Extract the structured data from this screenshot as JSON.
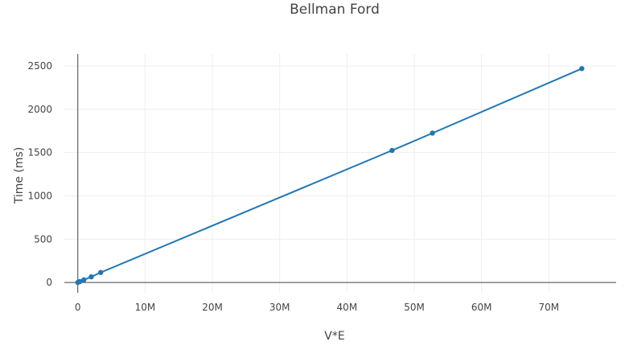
{
  "chart_data": {
    "type": "line",
    "title": "Bellman Ford",
    "xlabel": "V*E",
    "ylabel": "Time (ms)",
    "xlim": [
      -2000000,
      80000000
    ],
    "ylim": [
      -120,
      2640
    ],
    "grid": true,
    "legend": "none",
    "x_ticks": [
      {
        "value": 0,
        "label": "0"
      },
      {
        "value": 10000000,
        "label": "10M"
      },
      {
        "value": 20000000,
        "label": "20M"
      },
      {
        "value": 30000000,
        "label": "30M"
      },
      {
        "value": 40000000,
        "label": "40M"
      },
      {
        "value": 50000000,
        "label": "50M"
      },
      {
        "value": 60000000,
        "label": "60M"
      },
      {
        "value": 70000000,
        "label": "70M"
      }
    ],
    "y_ticks": [
      {
        "value": 0,
        "label": "0"
      },
      {
        "value": 500,
        "label": "500"
      },
      {
        "value": 1000,
        "label": "1000"
      },
      {
        "value": 1500,
        "label": "1500"
      },
      {
        "value": 2000,
        "label": "2000"
      },
      {
        "value": 2500,
        "label": "2500"
      }
    ],
    "series": [
      {
        "color": "#1f77b4",
        "x": [
          0,
          300000,
          900000,
          2000000,
          3400000,
          46700000,
          52700000,
          74900000
        ],
        "y": [
          0,
          10,
          30,
          65,
          115,
          1525,
          1725,
          2470
        ]
      }
    ]
  }
}
